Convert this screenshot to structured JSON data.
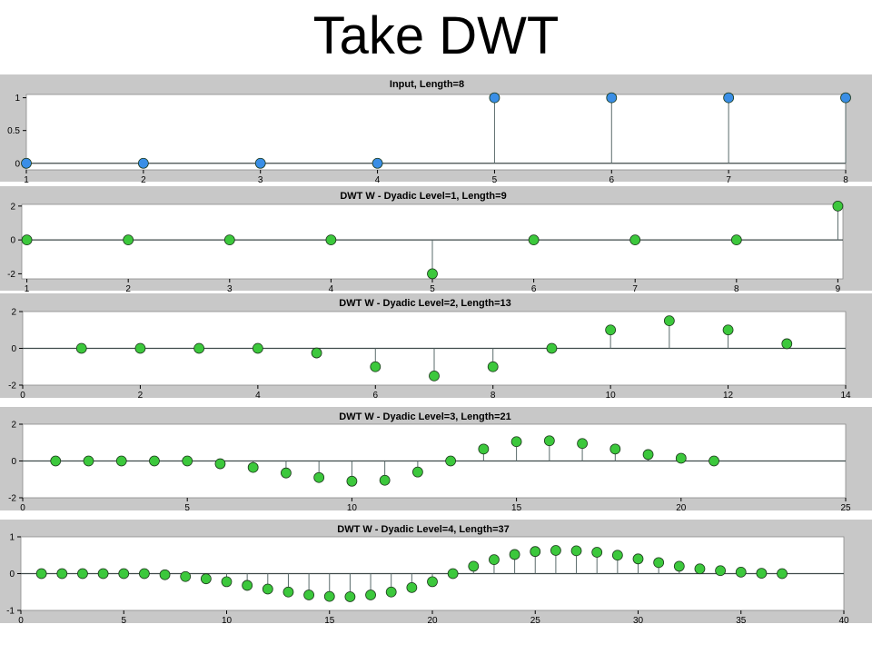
{
  "slide_title": "Take DWT",
  "colors": {
    "panel_bg": "#c8c8c8",
    "plot_bg": "#ffffff",
    "input_marker": "#3a8ee6",
    "dwt_marker": "#3cc83c",
    "stem": "#5a6b6b"
  },
  "chart_data": [
    {
      "type": "stem",
      "title": "Input, Length=8",
      "xlim": [
        1,
        8
      ],
      "ylim": [
        -0.1,
        1.05
      ],
      "xticks": [
        1,
        2,
        3,
        4,
        5,
        6,
        7,
        8
      ],
      "yticks": [
        0,
        0.5,
        1
      ],
      "x": [
        1,
        2,
        3,
        4,
        5,
        6,
        7,
        8
      ],
      "y": [
        0,
        0,
        0,
        0,
        1,
        1,
        1,
        1
      ],
      "marker_color": "#3a8ee6"
    },
    {
      "type": "stem",
      "title": "DWT W - Dyadic Level=1, Length=9",
      "xlim": [
        0.95,
        9.05
      ],
      "ylim": [
        -2.3,
        2.1
      ],
      "xticks": [
        1,
        2,
        3,
        4,
        5,
        6,
        7,
        8,
        9
      ],
      "yticks": [
        -2,
        0,
        2
      ],
      "x": [
        1,
        2,
        3,
        4,
        5,
        6,
        7,
        8,
        9
      ],
      "y": [
        0,
        0,
        0,
        0,
        -2,
        0,
        0,
        0,
        2
      ],
      "marker_color": "#3cc83c"
    },
    {
      "type": "stem",
      "title": "DWT W - Dyadic Level=2, Length=13",
      "xlim": [
        0,
        14
      ],
      "ylim": [
        -2,
        2
      ],
      "xticks": [
        0,
        2,
        4,
        6,
        8,
        10,
        12,
        14
      ],
      "yticks": [
        -2,
        0,
        2
      ],
      "x": [
        1,
        2,
        3,
        4,
        5,
        6,
        7,
        8,
        9,
        10,
        11,
        12,
        13
      ],
      "y": [
        0,
        0,
        0,
        0,
        -0.25,
        -1,
        -1.5,
        -1,
        0,
        1,
        1.5,
        1,
        0.25
      ],
      "marker_color": "#3cc83c"
    },
    {
      "type": "stem",
      "title": "DWT W - Dyadic Level=3, Length=21",
      "xlim": [
        0,
        25
      ],
      "ylim": [
        -2,
        2
      ],
      "xticks": [
        0,
        5,
        10,
        15,
        20,
        25
      ],
      "yticks": [
        -2,
        0,
        2
      ],
      "x": [
        1,
        2,
        3,
        4,
        5,
        6,
        7,
        8,
        9,
        10,
        11,
        12,
        13,
        14,
        15,
        16,
        17,
        18,
        19,
        20,
        21
      ],
      "y": [
        0,
        0,
        0,
        0,
        0,
        -0.15,
        -0.35,
        -0.65,
        -0.9,
        -1.1,
        -1.05,
        -0.6,
        0,
        0.65,
        1.05,
        1.1,
        0.95,
        0.65,
        0.35,
        0.15,
        0
      ],
      "marker_color": "#3cc83c"
    },
    {
      "type": "stem",
      "title": "DWT W - Dyadic Level=4, Length=37",
      "xlim": [
        0,
        40
      ],
      "ylim": [
        -1,
        1
      ],
      "xticks": [
        0,
        5,
        10,
        15,
        20,
        25,
        30,
        35,
        40
      ],
      "yticks": [
        -1,
        0,
        1
      ],
      "x": [
        1,
        2,
        3,
        4,
        5,
        6,
        7,
        8,
        9,
        10,
        11,
        12,
        13,
        14,
        15,
        16,
        17,
        18,
        19,
        20,
        21,
        22,
        23,
        24,
        25,
        26,
        27,
        28,
        29,
        30,
        31,
        32,
        33,
        34,
        35,
        36,
        37
      ],
      "y": [
        0,
        0,
        0,
        0,
        0,
        0,
        -0.03,
        -0.08,
        -0.14,
        -0.22,
        -0.32,
        -0.42,
        -0.5,
        -0.58,
        -0.62,
        -0.63,
        -0.58,
        -0.5,
        -0.38,
        -0.22,
        0,
        0.2,
        0.38,
        0.52,
        0.6,
        0.63,
        0.62,
        0.58,
        0.5,
        0.4,
        0.3,
        0.2,
        0.13,
        0.08,
        0.04,
        0.01,
        0
      ],
      "marker_color": "#3cc83c"
    }
  ]
}
